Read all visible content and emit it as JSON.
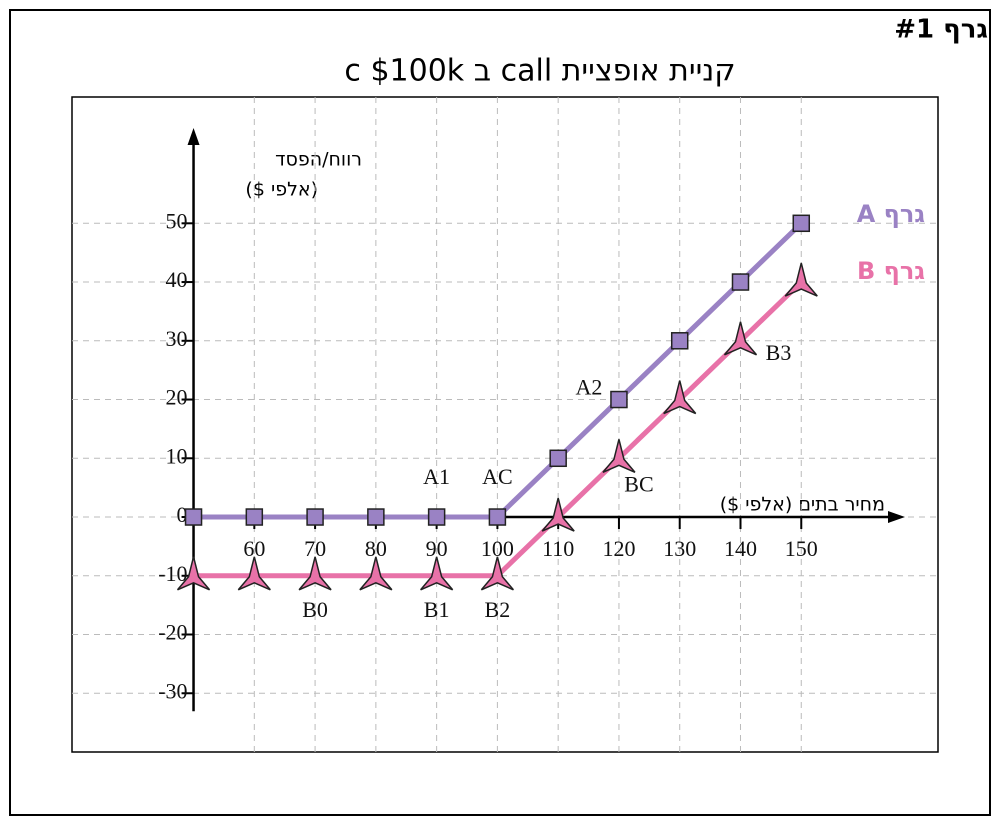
{
  "chart_data": {
    "type": "line",
    "badge": "גרף #1",
    "title": "קניית אופציית call ב c $100k",
    "y_label": "רווח/הפסד",
    "y_unit": "(אלפי $)",
    "x_label": "מחיר בתים (אלפי $)",
    "x": [
      50,
      60,
      70,
      80,
      90,
      100,
      110,
      120,
      130,
      140,
      150
    ],
    "series": [
      {
        "name": "גרף A",
        "color": "#9a82c4",
        "marker": "square",
        "values": [
          0,
          0,
          0,
          0,
          0,
          0,
          10,
          20,
          30,
          40,
          50
        ],
        "point_labels": [
          null,
          null,
          null,
          null,
          "A1",
          "AC",
          null,
          "A2",
          null,
          null,
          null
        ]
      },
      {
        "name": "גרף B",
        "color": "#e872a8",
        "marker": "star",
        "values": [
          -10,
          -10,
          -10,
          -10,
          -10,
          -10,
          0,
          10,
          20,
          30,
          40
        ],
        "point_labels": [
          null,
          null,
          "B0",
          null,
          "B1",
          "B2",
          null,
          "BC",
          null,
          "B3",
          null
        ]
      }
    ],
    "xlim": [
      30,
      172.5
    ],
    "ylim": [
      -40,
      71.5
    ],
    "xticks": [
      60,
      70,
      80,
      90,
      100,
      110,
      120,
      130,
      140,
      150
    ],
    "yticks": [
      -30,
      -20,
      -10,
      0,
      10,
      20,
      30,
      40,
      50
    ],
    "grid": true
  }
}
